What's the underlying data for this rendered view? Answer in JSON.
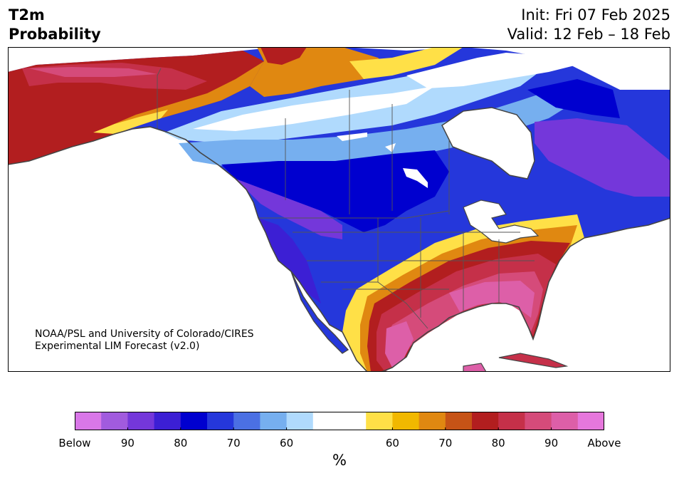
{
  "title": {
    "line1": "T2m",
    "line2": "Probability"
  },
  "dates": {
    "init": "Init: Fri 07 Feb 2025",
    "valid": "Valid: 12 Feb – 18 Feb"
  },
  "credit": {
    "line1": "NOAA/PSL and University of Colorado/CIRES",
    "line2": "Experimental LIM Forecast (v2.0)"
  },
  "colorbar": {
    "colors": [
      "#d977e8",
      "#a15bde",
      "#7437da",
      "#3c1fd4",
      "#0000cf",
      "#2537db",
      "#4b70e3",
      "#76afef",
      "#b0dafd",
      "#ffffff",
      "#ffffff",
      "#ffe047",
      "#f1b800",
      "#e08811",
      "#c65316",
      "#b21e1f",
      "#c53049",
      "#d54b7a",
      "#dd5fa8",
      "#e677dc"
    ],
    "ticks": [
      "Below",
      "90",
      "80",
      "70",
      "60",
      "60",
      "70",
      "80",
      "90",
      "Above"
    ],
    "unit": "%"
  },
  "map_colors": {
    "ocean": "#ffffff",
    "coast": "#444444",
    "border": "#555555"
  }
}
